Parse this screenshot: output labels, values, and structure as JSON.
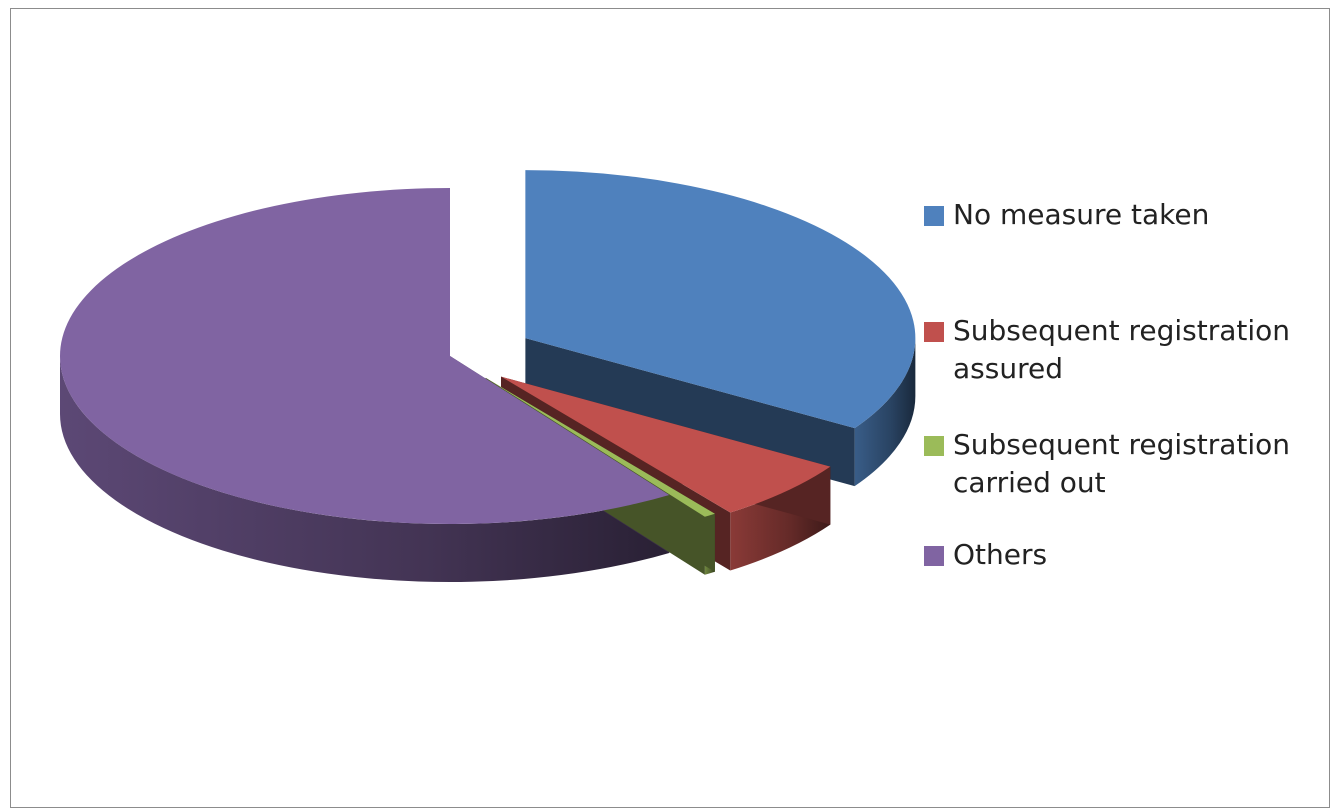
{
  "chart_data": {
    "type": "pie",
    "style": "3d-exploded",
    "title": "",
    "categories": [
      "No measure taken",
      "Subsequent registration assured",
      "Subsequent registration carried out",
      "Others"
    ],
    "values": [
      34,
      6,
      0.5,
      59.5
    ],
    "value_unit": "percent",
    "colors": [
      "#4f81bd",
      "#c0504d",
      "#9bbb59",
      "#8064a2"
    ],
    "legend": {
      "position": "right",
      "entries": [
        {
          "label": "No measure taken",
          "color": "#4f81bd"
        },
        {
          "label": "Subsequent registration assured",
          "color": "#c0504d"
        },
        {
          "label": "Subsequent registration carried out",
          "color": "#9bbb59"
        },
        {
          "label": "Others",
          "color": "#8064a2"
        }
      ]
    }
  }
}
